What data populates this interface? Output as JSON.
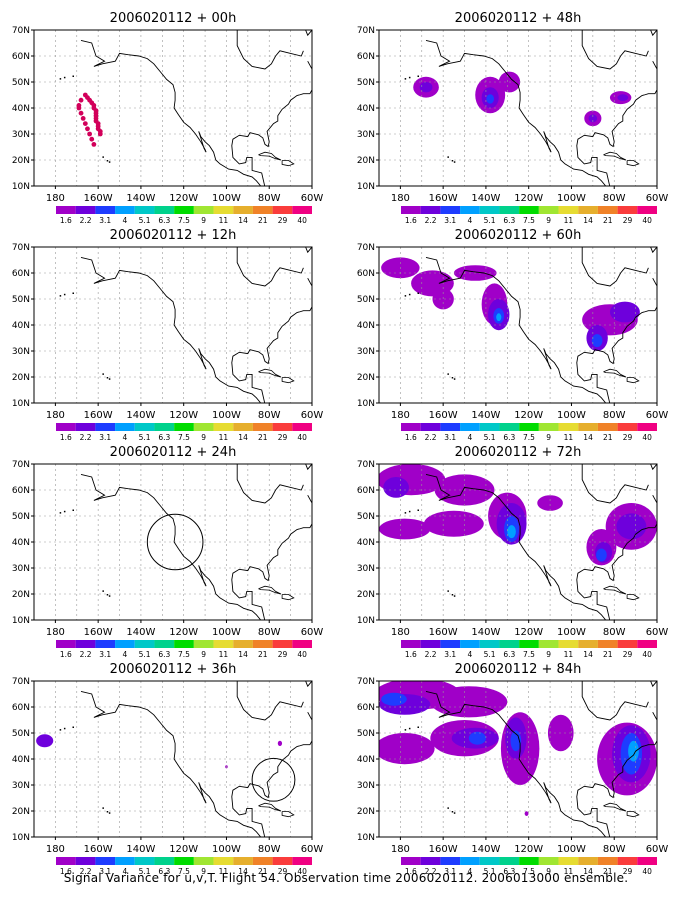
{
  "caption": "Signal Variance for u,v,T. Flight 54. Observation time 2006020112. 2006013000 ensemble.",
  "chart_data": [
    {
      "type": "heatmap",
      "title": "2006020112 + 00h",
      "panel": "00h",
      "xticks": [
        "180",
        "160W",
        "140W",
        "120W",
        "100W",
        "80W",
        "60W"
      ],
      "yticks": [
        "10N",
        "20N",
        "30N",
        "40N",
        "50N",
        "60N",
        "70N"
      ],
      "xlim": [
        -190,
        -60
      ],
      "ylim": [
        10,
        70
      ],
      "colorbar": [
        "1.6",
        "2.2",
        "3.1",
        "4",
        "5.1",
        "6.3",
        "7.5",
        "9",
        "11",
        "14",
        "21",
        "29",
        "40"
      ],
      "observations": [
        [
          -166,
          45
        ],
        [
          -165,
          44
        ],
        [
          -164,
          43
        ],
        [
          -163,
          42
        ],
        [
          -162,
          41
        ],
        [
          -162,
          40
        ],
        [
          -161,
          39
        ],
        [
          -161,
          38
        ],
        [
          -161,
          37
        ],
        [
          -161,
          36
        ],
        [
          -161,
          35
        ],
        [
          -160,
          34
        ],
        [
          -160,
          33
        ],
        [
          -160,
          32
        ],
        [
          -159,
          31
        ],
        [
          -159,
          30
        ],
        [
          -168,
          43
        ],
        [
          -169,
          41
        ],
        [
          -169,
          40
        ],
        [
          -168,
          38
        ],
        [
          -167,
          36
        ],
        [
          -166,
          34
        ],
        [
          -165,
          32
        ],
        [
          -164,
          30
        ],
        [
          -163,
          28
        ],
        [
          -162,
          26
        ]
      ],
      "blobs": []
    },
    {
      "type": "heatmap",
      "title": "2006020112 + 12h",
      "panel": "12h",
      "xticks": [
        "180",
        "160W",
        "140W",
        "120W",
        "100W",
        "80W",
        "60W"
      ],
      "yticks": [
        "10N",
        "20N",
        "30N",
        "40N",
        "50N",
        "60N",
        "70N"
      ],
      "xlim": [
        -190,
        -60
      ],
      "ylim": [
        10,
        70
      ],
      "colorbar": [
        "1.6",
        "2.2",
        "3.1",
        "4",
        "5.1",
        "6.3",
        "7.5",
        "9",
        "11",
        "14",
        "21",
        "29",
        "40"
      ],
      "blobs": []
    },
    {
      "type": "heatmap",
      "title": "2006020112 + 24h",
      "panel": "24h",
      "xticks": [
        "180",
        "160W",
        "140W",
        "120W",
        "100W",
        "80W",
        "60W"
      ],
      "yticks": [
        "10N",
        "20N",
        "30N",
        "40N",
        "50N",
        "60N",
        "70N"
      ],
      "xlim": [
        -190,
        -60
      ],
      "ylim": [
        10,
        70
      ],
      "colorbar": [
        "1.6",
        "2.2",
        "3.1",
        "4",
        "5.1",
        "6.3",
        "7.5",
        "9",
        "11",
        "14",
        "21",
        "29",
        "40"
      ],
      "circles": [
        [
          -124,
          40,
          13
        ]
      ],
      "blobs": []
    },
    {
      "type": "heatmap",
      "title": "2006020112 + 36h",
      "panel": "36h",
      "xticks": [
        "180",
        "160W",
        "140W",
        "120W",
        "100W",
        "80W",
        "60W"
      ],
      "yticks": [
        "10N",
        "20N",
        "30N",
        "40N",
        "50N",
        "60N",
        "70N"
      ],
      "xlim": [
        -190,
        -60
      ],
      "ylim": [
        10,
        70
      ],
      "colorbar": [
        "1.6",
        "2.2",
        "3.1",
        "4",
        "5.1",
        "6.3",
        "7.5",
        "9",
        "11",
        "14",
        "21",
        "29",
        "40"
      ],
      "circles": [
        [
          -78,
          32,
          10
        ]
      ],
      "blobs": [
        {
          "lon": -185,
          "lat": 47,
          "rx": 4,
          "ry": 2.5,
          "level": 1
        },
        {
          "lon": -75,
          "lat": 46,
          "rx": 1,
          "ry": 1,
          "level": 0
        },
        {
          "lon": -100,
          "lat": 37,
          "rx": 0.6,
          "ry": 0.6,
          "level": 0
        }
      ]
    },
    {
      "type": "heatmap",
      "title": "2006020112 + 48h",
      "panel": "48h",
      "xticks": [
        "180",
        "160W",
        "140W",
        "120W",
        "100W",
        "80W",
        "60W"
      ],
      "yticks": [
        "10N",
        "20N",
        "30N",
        "40N",
        "50N",
        "60N",
        "70N"
      ],
      "xlim": [
        -190,
        -60
      ],
      "ylim": [
        10,
        70
      ],
      "colorbar": [
        "1.6",
        "2.2",
        "3.1",
        "4",
        "5.1",
        "6.3",
        "7.5",
        "9",
        "11",
        "14",
        "21",
        "29",
        "40"
      ],
      "blobs": [
        {
          "lon": -168,
          "lat": 48,
          "rx": 6,
          "ry": 4,
          "level": 0
        },
        {
          "lon": -168,
          "lat": 48,
          "rx": 3,
          "ry": 2,
          "level": 1
        },
        {
          "lon": -138,
          "lat": 45,
          "rx": 7,
          "ry": 7,
          "level": 0
        },
        {
          "lon": -129,
          "lat": 50,
          "rx": 5,
          "ry": 4,
          "level": 0
        },
        {
          "lon": -138,
          "lat": 44,
          "rx": 4,
          "ry": 4,
          "level": 1
        },
        {
          "lon": -138,
          "lat": 43.5,
          "rx": 1.8,
          "ry": 1.8,
          "level": 2
        },
        {
          "lon": -90,
          "lat": 36,
          "rx": 4,
          "ry": 3,
          "level": 0
        },
        {
          "lon": -90,
          "lat": 36,
          "rx": 2,
          "ry": 1.5,
          "level": 1
        },
        {
          "lon": -77,
          "lat": 44,
          "rx": 5,
          "ry": 2.5,
          "level": 0
        },
        {
          "lon": -76,
          "lat": 44,
          "rx": 2.5,
          "ry": 1.3,
          "level": 1
        }
      ]
    },
    {
      "type": "heatmap",
      "title": "2006020112 + 60h",
      "panel": "60h",
      "xticks": [
        "180",
        "160W",
        "140W",
        "120W",
        "100W",
        "80W",
        "60W"
      ],
      "yticks": [
        "10N",
        "20N",
        "30N",
        "40N",
        "50N",
        "60N",
        "70N"
      ],
      "xlim": [
        -190,
        -60
      ],
      "ylim": [
        10,
        70
      ],
      "colorbar": [
        "1.6",
        "2.2",
        "3.1",
        "4",
        "5.1",
        "6.3",
        "7.5",
        "9",
        "11",
        "14",
        "21",
        "29",
        "40"
      ],
      "blobs": [
        {
          "lon": -180,
          "lat": 62,
          "rx": 9,
          "ry": 4,
          "level": 0
        },
        {
          "lon": -165,
          "lat": 56,
          "rx": 10,
          "ry": 5,
          "level": 0
        },
        {
          "lon": -160,
          "lat": 50,
          "rx": 5,
          "ry": 4,
          "level": 0
        },
        {
          "lon": -145,
          "lat": 60,
          "rx": 10,
          "ry": 3,
          "level": 0
        },
        {
          "lon": -136,
          "lat": 48,
          "rx": 6,
          "ry": 8,
          "level": 0
        },
        {
          "lon": -134,
          "lat": 44,
          "rx": 5,
          "ry": 6,
          "level": 1
        },
        {
          "lon": -134,
          "lat": 43.5,
          "rx": 2.5,
          "ry": 3,
          "level": 2
        },
        {
          "lon": -134,
          "lat": 43,
          "rx": 1.2,
          "ry": 1.5,
          "level": 3
        },
        {
          "lon": -82,
          "lat": 42,
          "rx": 13,
          "ry": 6,
          "level": 0
        },
        {
          "lon": -88,
          "lat": 35,
          "rx": 5,
          "ry": 5,
          "level": 1
        },
        {
          "lon": -75,
          "lat": 45,
          "rx": 7,
          "ry": 4,
          "level": 1
        },
        {
          "lon": -88,
          "lat": 34,
          "rx": 2.5,
          "ry": 2.5,
          "level": 2
        }
      ]
    },
    {
      "type": "heatmap",
      "title": "2006020112 + 72h",
      "panel": "72h",
      "xticks": [
        "180",
        "160W",
        "140W",
        "120W",
        "100W",
        "80W",
        "60W"
      ],
      "yticks": [
        "10N",
        "20N",
        "30N",
        "40N",
        "50N",
        "60N",
        "70N"
      ],
      "xlim": [
        -190,
        -60
      ],
      "ylim": [
        10,
        70
      ],
      "colorbar": [
        "1.6",
        "2.2",
        "3.1",
        "4",
        "5.1",
        "6.3",
        "7.5",
        "9",
        "11",
        "14",
        "21",
        "29",
        "40"
      ],
      "blobs": [
        {
          "lon": -175,
          "lat": 64,
          "rx": 16,
          "ry": 6,
          "level": 0
        },
        {
          "lon": -182,
          "lat": 61,
          "rx": 6,
          "ry": 4,
          "level": 1
        },
        {
          "lon": -150,
          "lat": 60,
          "rx": 14,
          "ry": 6,
          "level": 0
        },
        {
          "lon": -178,
          "lat": 45,
          "rx": 12,
          "ry": 4,
          "level": 0
        },
        {
          "lon": -155,
          "lat": 47,
          "rx": 14,
          "ry": 5,
          "level": 0
        },
        {
          "lon": -130,
          "lat": 50,
          "rx": 9,
          "ry": 9,
          "level": 0
        },
        {
          "lon": -128,
          "lat": 47,
          "rx": 7,
          "ry": 8,
          "level": 1
        },
        {
          "lon": -128,
          "lat": 45,
          "rx": 3.5,
          "ry": 5,
          "level": 2
        },
        {
          "lon": -128,
          "lat": 44,
          "rx": 2,
          "ry": 2.5,
          "level": 3
        },
        {
          "lon": -110,
          "lat": 55,
          "rx": 6,
          "ry": 3,
          "level": 0
        },
        {
          "lon": -86,
          "lat": 38,
          "rx": 7,
          "ry": 7,
          "level": 0
        },
        {
          "lon": -72,
          "lat": 46,
          "rx": 12,
          "ry": 9,
          "level": 0
        },
        {
          "lon": -85,
          "lat": 36,
          "rx": 4,
          "ry": 4,
          "level": 1
        },
        {
          "lon": -72,
          "lat": 46,
          "rx": 7,
          "ry": 5,
          "level": 1
        },
        {
          "lon": -86,
          "lat": 35,
          "rx": 2.5,
          "ry": 2.5,
          "level": 2
        }
      ]
    },
    {
      "type": "heatmap",
      "title": "2006020112 + 84h",
      "panel": "84h",
      "xticks": [
        "180",
        "160W",
        "140W",
        "120W",
        "100W",
        "80W",
        "60W"
      ],
      "yticks": [
        "10N",
        "20N",
        "30N",
        "40N",
        "50N",
        "60N",
        "70N"
      ],
      "xlim": [
        -190,
        -60
      ],
      "ylim": [
        10,
        70
      ],
      "colorbar": [
        "1.6",
        "2.2",
        "3.1",
        "4",
        "5.1",
        "6.3",
        "7.5",
        "9",
        "11",
        "14",
        "21",
        "29",
        "40"
      ],
      "blobs": [
        {
          "lon": -172,
          "lat": 65,
          "rx": 20,
          "ry": 6,
          "level": 0
        },
        {
          "lon": -148,
          "lat": 62,
          "rx": 18,
          "ry": 6,
          "level": 0
        },
        {
          "lon": -178,
          "lat": 44,
          "rx": 14,
          "ry": 6,
          "level": 0
        },
        {
          "lon": -150,
          "lat": 48,
          "rx": 16,
          "ry": 7,
          "level": 0
        },
        {
          "lon": -124,
          "lat": 44,
          "rx": 9,
          "ry": 14,
          "level": 0
        },
        {
          "lon": -105,
          "lat": 50,
          "rx": 6,
          "ry": 7,
          "level": 0
        },
        {
          "lon": -178,
          "lat": 61,
          "rx": 12,
          "ry": 4,
          "level": 1
        },
        {
          "lon": -183,
          "lat": 63,
          "rx": 6,
          "ry": 2.5,
          "level": 2
        },
        {
          "lon": -145,
          "lat": 48,
          "rx": 11,
          "ry": 4,
          "level": 1
        },
        {
          "lon": -144,
          "lat": 48,
          "rx": 4,
          "ry": 2.5,
          "level": 2
        },
        {
          "lon": -126,
          "lat": 48,
          "rx": 5,
          "ry": 8,
          "level": 1
        },
        {
          "lon": -126,
          "lat": 47,
          "rx": 2.5,
          "ry": 4,
          "level": 2
        },
        {
          "lon": -121,
          "lat": 19,
          "rx": 0.9,
          "ry": 0.9,
          "level": 0
        },
        {
          "lon": -74,
          "lat": 40,
          "rx": 14,
          "ry": 14,
          "level": 0
        },
        {
          "lon": -72,
          "lat": 42,
          "rx": 9,
          "ry": 11,
          "level": 1
        },
        {
          "lon": -72,
          "lat": 42,
          "rx": 5,
          "ry": 8,
          "level": 2
        },
        {
          "lon": -71,
          "lat": 43,
          "rx": 2.5,
          "ry": 4,
          "level": 3
        }
      ]
    }
  ],
  "colors": {
    "levels": [
      "#a000c8",
      "#6e00dc",
      "#1e3cff",
      "#00a0ff",
      "#00c8c8",
      "#00d28c",
      "#00dc00",
      "#a0e632",
      "#e6dc32",
      "#e6af2d",
      "#f08228",
      "#fa3c3c",
      "#f00082"
    ],
    "obs_marker": "#d2005a",
    "frame": "#000000",
    "grid": "#999999"
  }
}
